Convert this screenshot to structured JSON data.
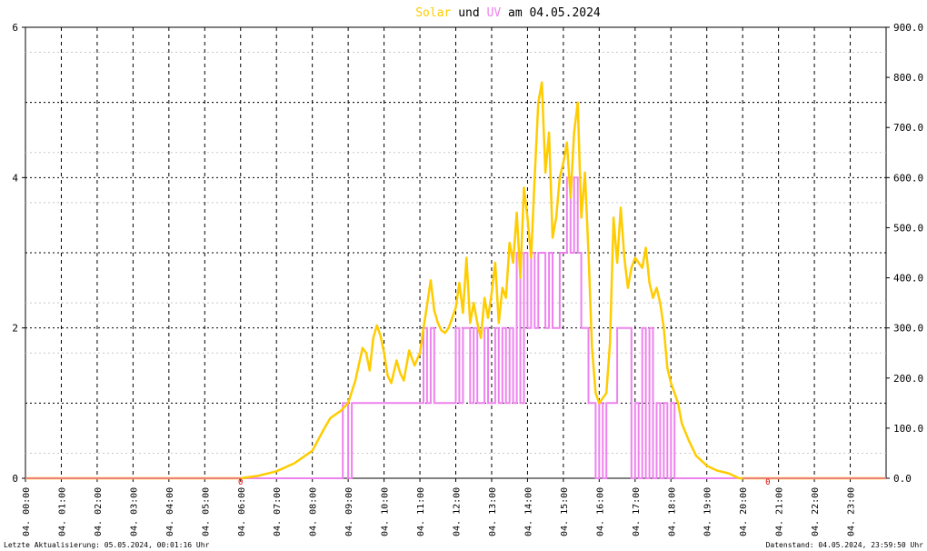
{
  "title": {
    "part1": "Solar",
    "part2": " und ",
    "part3": "UV",
    "part4": " am 04.05.2024"
  },
  "colors": {
    "solar": "#ffcc00",
    "uv": "#ee82ee",
    "zero_line": "#f08080",
    "grid": "#000000",
    "minor_grid": "#c8c8c8"
  },
  "footer": {
    "left": "Letzte Aktualisierung: 05.05.2024, 00:01:16 Uhr",
    "right": "Datenstand: 04.05.2024, 23:59:50 Uhr"
  },
  "markers": {
    "sunrise": "0",
    "sunset": "0",
    "sunrise_time": 6.0,
    "sunset_time": 20.7
  },
  "chart_data": {
    "type": "line",
    "x_unit": "hour",
    "xlim": [
      0,
      24
    ],
    "x_tick_labels": [
      "04. 00:00",
      "04. 01:00",
      "04. 02:00",
      "04. 03:00",
      "04. 04:00",
      "04. 05:00",
      "04. 06:00",
      "04. 07:00",
      "04. 08:00",
      "04. 09:00",
      "04. 10:00",
      "04. 11:00",
      "04. 12:00",
      "04. 13:00",
      "04. 14:00",
      "04. 15:00",
      "04. 16:00",
      "04. 17:00",
      "04. 18:00",
      "04. 19:00",
      "04. 20:00",
      "04. 21:00",
      "04. 22:00",
      "04. 23:00"
    ],
    "y_left": {
      "ylim": [
        0,
        6
      ],
      "ticks": [
        "0",
        "2",
        "4",
        "6"
      ]
    },
    "y_right": {
      "ylim": [
        0,
        900
      ],
      "ticks": [
        "0.0",
        "100.0",
        "200.0",
        "300.0",
        "400.0",
        "500.0",
        "600.0",
        "700.0",
        "800.0",
        "900.0"
      ]
    },
    "grid": true,
    "series": [
      {
        "name": "Solar",
        "axis": "right",
        "x": [
          0,
          6.0,
          6.5,
          7.0,
          7.5,
          8.0,
          8.3,
          8.5,
          8.8,
          9.0,
          9.2,
          9.4,
          9.5,
          9.6,
          9.7,
          9.8,
          9.9,
          10.0,
          10.1,
          10.2,
          10.35,
          10.45,
          10.55,
          10.7,
          10.85,
          11.0,
          11.1,
          11.2,
          11.3,
          11.4,
          11.5,
          11.6,
          11.7,
          11.8,
          11.9,
          12.0,
          12.1,
          12.2,
          12.3,
          12.4,
          12.5,
          12.6,
          12.7,
          12.8,
          12.9,
          13.0,
          13.1,
          13.2,
          13.3,
          13.4,
          13.5,
          13.6,
          13.7,
          13.8,
          13.9,
          14.0,
          14.1,
          14.2,
          14.3,
          14.4,
          14.5,
          14.6,
          14.7,
          14.8,
          14.9,
          15.0,
          15.1,
          15.2,
          15.3,
          15.4,
          15.5,
          15.6,
          15.7,
          15.8,
          15.9,
          16.0,
          16.1,
          16.2,
          16.3,
          16.4,
          16.5,
          16.6,
          16.7,
          16.8,
          16.9,
          17.0,
          17.1,
          17.2,
          17.3,
          17.4,
          17.5,
          17.6,
          17.7,
          17.8,
          17.9,
          18.0,
          18.1,
          18.2,
          18.3,
          18.5,
          18.7,
          19.0,
          19.3,
          19.6,
          19.9,
          20.0,
          24
        ],
        "values": [
          0,
          0,
          5,
          14,
          30,
          55,
          95,
          120,
          135,
          150,
          195,
          260,
          250,
          215,
          280,
          305,
          285,
          250,
          205,
          190,
          235,
          210,
          195,
          255,
          225,
          250,
          300,
          345,
          395,
          335,
          310,
          295,
          290,
          300,
          320,
          340,
          390,
          330,
          440,
          310,
          350,
          310,
          280,
          360,
          320,
          370,
          430,
          310,
          380,
          360,
          470,
          430,
          530,
          400,
          580,
          520,
          440,
          600,
          750,
          790,
          610,
          690,
          480,
          520,
          600,
          630,
          670,
          560,
          690,
          750,
          520,
          610,
          450,
          260,
          170,
          150,
          160,
          170,
          270,
          520,
          430,
          540,
          440,
          380,
          420,
          440,
          430,
          420,
          460,
          390,
          360,
          380,
          350,
          300,
          220,
          190,
          170,
          150,
          110,
          75,
          45,
          25,
          15,
          10,
          0,
          0,
          0
        ]
      },
      {
        "name": "UV",
        "axis": "left",
        "x": [
          0,
          8.85,
          9.0,
          9.1,
          9.15,
          11.0,
          11.1,
          11.2,
          11.3,
          11.4,
          11.5,
          11.6,
          11.7,
          11.8,
          11.9,
          12.0,
          12.1,
          12.2,
          12.3,
          12.4,
          12.5,
          12.6,
          12.7,
          12.8,
          12.9,
          13.0,
          13.1,
          13.2,
          13.3,
          13.4,
          13.5,
          13.6,
          13.7,
          13.8,
          13.9,
          14.0,
          14.1,
          14.2,
          14.3,
          14.4,
          14.5,
          14.6,
          14.7,
          14.8,
          14.9,
          15.0,
          15.1,
          15.2,
          15.3,
          15.4,
          15.5,
          15.6,
          15.7,
          15.8,
          15.9,
          16.0,
          16.1,
          16.2,
          16.3,
          16.4,
          16.5,
          16.6,
          16.7,
          16.8,
          16.9,
          17.0,
          17.1,
          17.2,
          17.3,
          17.4,
          17.5,
          17.6,
          17.7,
          17.8,
          17.9,
          18.0,
          18.1,
          18.2,
          18.3,
          18.4,
          24
        ],
        "values": [
          0,
          1,
          0,
          1,
          1,
          1,
          2,
          1,
          2,
          1,
          1,
          1,
          1,
          1,
          1,
          2,
          1,
          2,
          2,
          1,
          2,
          1,
          1,
          2,
          1,
          1,
          2,
          1,
          2,
          1,
          2,
          1,
          3,
          1,
          3,
          2,
          3,
          2,
          3,
          3,
          2,
          3,
          2,
          2,
          3,
          3,
          4,
          3,
          4,
          3,
          2,
          2,
          1,
          1,
          0,
          1,
          0,
          1,
          1,
          1,
          2,
          2,
          2,
          2,
          0,
          1,
          0,
          2,
          0,
          2,
          0,
          1,
          0,
          1,
          0,
          1,
          0,
          0,
          0,
          0,
          0
        ]
      }
    ]
  }
}
